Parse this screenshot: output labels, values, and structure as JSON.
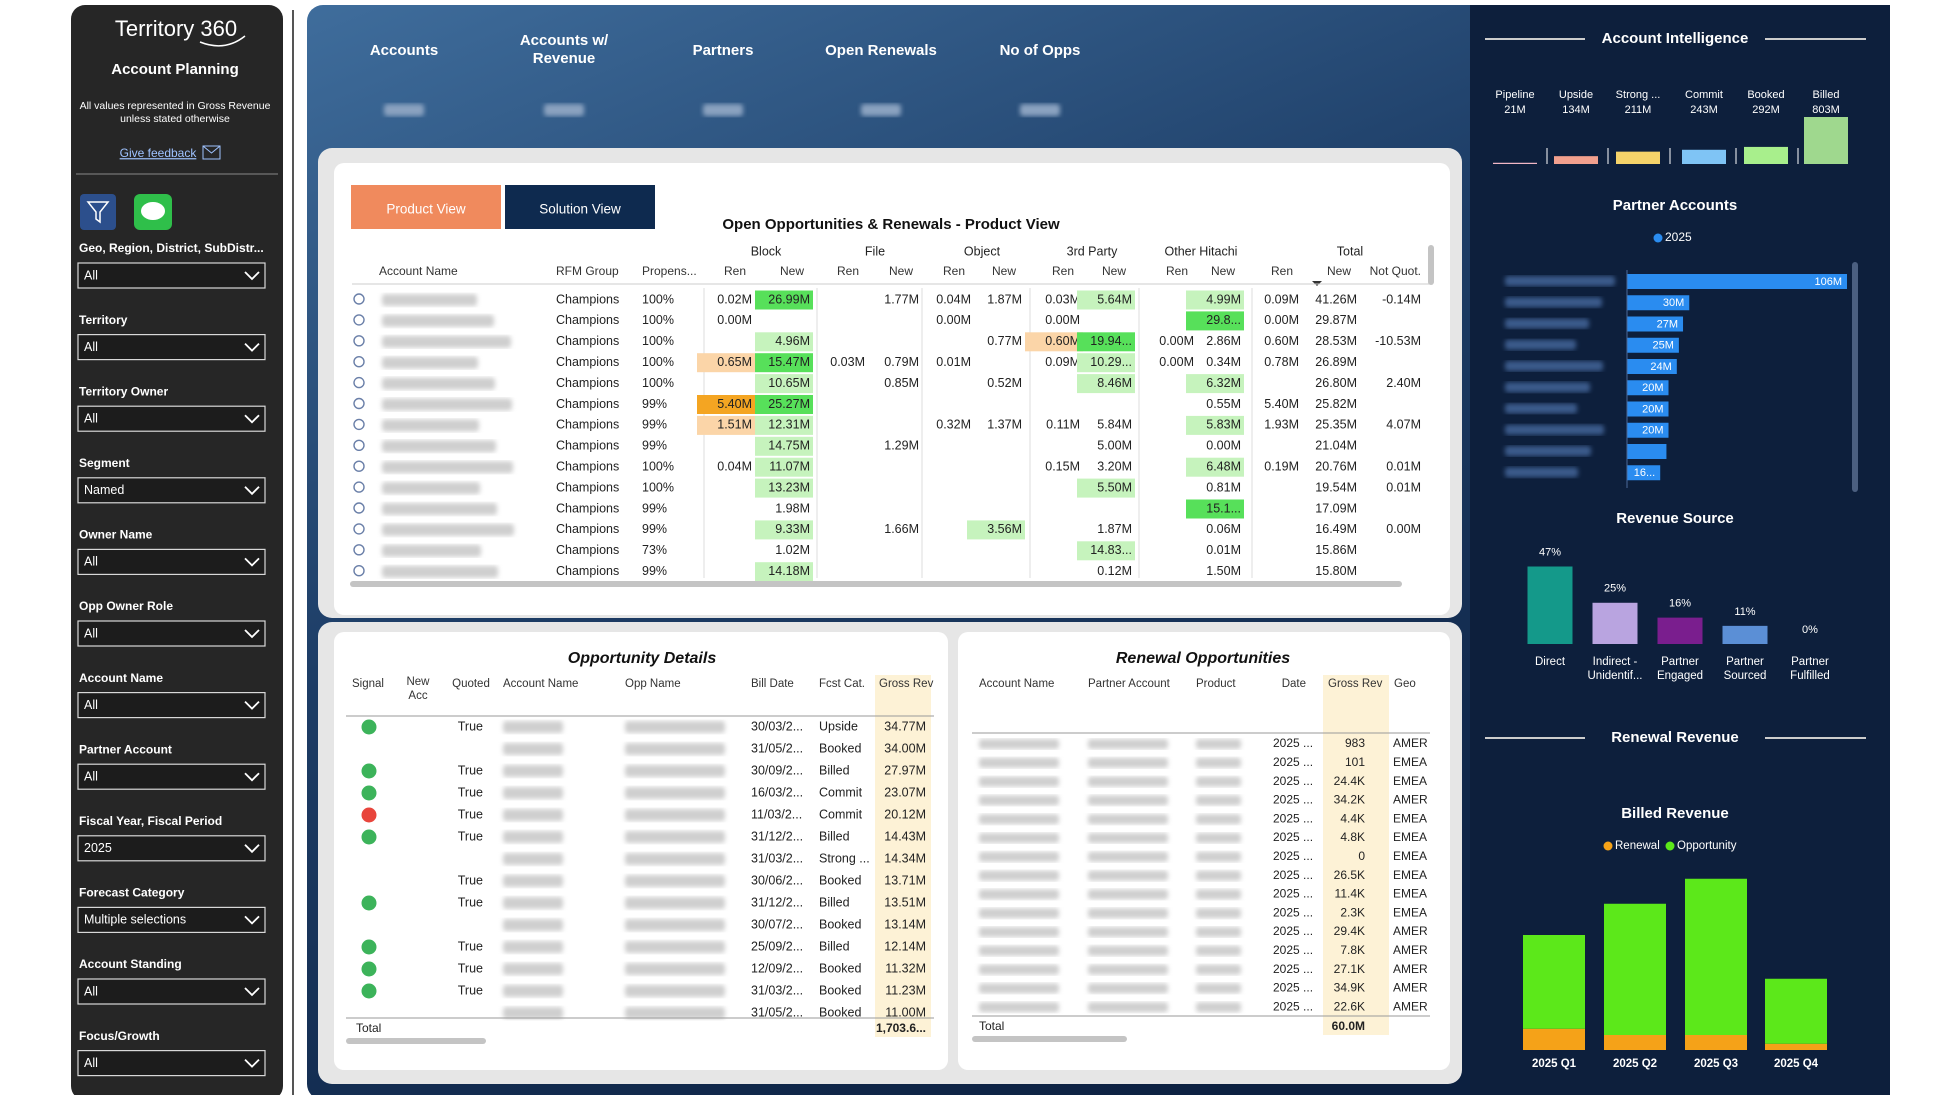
{
  "sidebar": {
    "title": "Territory 360",
    "subtitle": "Account Planning",
    "note": "All values represented in Gross Revenue unless stated otherwise",
    "feedback": "Give feedback",
    "filters": [
      {
        "label": "Geo, Region, District, SubDistr...",
        "value": "All"
      },
      {
        "label": "Territory",
        "value": "All"
      },
      {
        "label": "Territory Owner",
        "value": "All"
      },
      {
        "label": "Segment",
        "value": "Named"
      },
      {
        "label": "Owner Name",
        "value": "All"
      },
      {
        "label": "Opp Owner Role",
        "value": "All"
      },
      {
        "label": "Account Name",
        "value": "All"
      },
      {
        "label": "Partner Account",
        "value": "All"
      },
      {
        "label": "Fiscal Year, Fiscal Period",
        "value": "2025"
      },
      {
        "label": "Forecast Category",
        "value": "Multiple selections"
      },
      {
        "label": "Account Standing",
        "value": "All"
      },
      {
        "label": "Focus/Growth",
        "value": "All"
      }
    ]
  },
  "kpis": [
    "Accounts",
    "Accounts w/ Revenue",
    "Partners",
    "Open Renewals",
    "No of Opps"
  ],
  "product_table": {
    "tabs": [
      "Product View",
      "Solution View"
    ],
    "title": "Open Opportunities & Renewals - Product View",
    "groups": [
      "Block",
      "File",
      "Object",
      "3rd Party",
      "Other Hitachi",
      "Total"
    ],
    "headers": [
      "Account Name",
      "RFM Group",
      "Propens...",
      "Ren",
      "New",
      "Ren",
      "New",
      "Ren",
      "New",
      "Ren",
      "New",
      "Ren",
      "New",
      "Ren",
      "New",
      "Not Quot."
    ],
    "rows": [
      [
        "Champions",
        "100%",
        "0.02M",
        {
          "text": "26.99M",
          "color": "#57e05a"
        },
        null,
        "1.77M",
        "0.04M",
        "1.87M",
        "0.03M",
        {
          "text": "5.64M",
          "color": "#c6f3bd"
        },
        null,
        {
          "text": "4.99M",
          "color": "#c6f3bd"
        },
        "0.09M",
        "41.26M",
        "-0.14M"
      ],
      [
        "Champions",
        "100%",
        "0.00M",
        null,
        null,
        null,
        "0.00M",
        null,
        "0.00M",
        null,
        null,
        {
          "text": "29.8...",
          "color": "#57e05a"
        },
        "0.00M",
        "29.87M",
        null
      ],
      [
        "Champions",
        "100%",
        null,
        {
          "text": "4.96M",
          "color": "#c6f3bd"
        },
        null,
        null,
        null,
        "0.77M",
        {
          "text": "0.60M",
          "color": "#fbd5a8"
        },
        {
          "text": "19.94...",
          "color": "#57e05a"
        },
        "0.00M",
        "2.86M",
        "0.60M",
        "28.53M",
        "-10.53M"
      ],
      [
        "Champions",
        "100%",
        {
          "text": "0.65M",
          "color": "#fbd5a8"
        },
        {
          "text": "15.47M",
          "color": "#57e05a"
        },
        "0.03M",
        "0.79M",
        "0.01M",
        null,
        "0.09M",
        {
          "text": "10.29...",
          "color": "#c6f3bd"
        },
        "0.00M",
        "0.34M",
        "0.78M",
        "26.89M",
        null
      ],
      [
        "Champions",
        "100%",
        null,
        {
          "text": "10.65M",
          "color": "#c6f3bd"
        },
        null,
        "0.85M",
        null,
        "0.52M",
        null,
        {
          "text": "8.46M",
          "color": "#c6f3bd"
        },
        null,
        {
          "text": "6.32M",
          "color": "#c6f3bd"
        },
        null,
        "26.80M",
        "2.40M"
      ],
      [
        "Champions",
        "99%",
        {
          "text": "5.40M",
          "color": "#f4a522"
        },
        {
          "text": "25.27M",
          "color": "#57e05a"
        },
        null,
        null,
        null,
        null,
        null,
        null,
        null,
        "0.55M",
        "5.40M",
        "25.82M",
        null
      ],
      [
        "Champions",
        "99%",
        {
          "text": "1.51M",
          "color": "#fbd5a8"
        },
        {
          "text": "12.31M",
          "color": "#c6f3bd"
        },
        null,
        null,
        "0.32M",
        "1.37M",
        "0.11M",
        "5.84M",
        null,
        {
          "text": "5.83M",
          "color": "#c6f3bd"
        },
        "1.93M",
        "25.35M",
        "4.07M"
      ],
      [
        "Champions",
        "99%",
        null,
        {
          "text": "14.75M",
          "color": "#c6f3bd"
        },
        null,
        "1.29M",
        null,
        null,
        null,
        "5.00M",
        null,
        "0.00M",
        null,
        "21.04M",
        null
      ],
      [
        "Champions",
        "100%",
        "0.04M",
        {
          "text": "11.07M",
          "color": "#c6f3bd"
        },
        null,
        null,
        null,
        null,
        "0.15M",
        "3.20M",
        null,
        {
          "text": "6.48M",
          "color": "#c6f3bd"
        },
        "0.19M",
        "20.76M",
        "0.01M"
      ],
      [
        "Champions",
        "100%",
        null,
        {
          "text": "13.23M",
          "color": "#c6f3bd"
        },
        null,
        null,
        null,
        null,
        null,
        {
          "text": "5.50M",
          "color": "#c6f3bd"
        },
        null,
        "0.81M",
        null,
        "19.54M",
        "0.01M"
      ],
      [
        "Champions",
        "99%",
        null,
        "1.98M",
        null,
        null,
        null,
        null,
        null,
        null,
        null,
        {
          "text": "15.1...",
          "color": "#57e05a"
        },
        null,
        "17.09M",
        null
      ],
      [
        "Champions",
        "99%",
        null,
        {
          "text": "9.33M",
          "color": "#c6f3bd"
        },
        null,
        "1.66M",
        null,
        {
          "text": "3.56M",
          "color": "#c6f3bd"
        },
        null,
        "1.87M",
        null,
        "0.06M",
        null,
        "16.49M",
        "0.00M"
      ],
      [
        "Champions",
        "73%",
        null,
        "1.02M",
        null,
        null,
        null,
        null,
        null,
        {
          "text": "14.83...",
          "color": "#c6f3bd"
        },
        null,
        "0.01M",
        null,
        "15.86M",
        null
      ],
      [
        "Champions",
        "99%",
        null,
        {
          "text": "14.18M",
          "color": "#c6f3bd"
        },
        null,
        null,
        null,
        null,
        null,
        "0.12M",
        null,
        "1.50M",
        null,
        "15.80M",
        null
      ]
    ]
  },
  "opportunity_details": {
    "title": "Opportunity Details",
    "headers": [
      "Signal",
      "New Acc",
      "Quoted",
      "Account Name",
      "Opp Name",
      "Bill Date",
      "Fcst Cat.",
      "Gross Rev"
    ],
    "rows": [
      {
        "signal": "#3cb35a",
        "quoted": "True",
        "bill_date": "30/03/2...",
        "fcst_cat": "Upside",
        "gross_rev": "34.77M"
      },
      {
        "signal": null,
        "quoted": null,
        "bill_date": "31/05/2...",
        "fcst_cat": "Booked",
        "gross_rev": "34.00M"
      },
      {
        "signal": "#3cb35a",
        "quoted": "True",
        "bill_date": "30/09/2...",
        "fcst_cat": "Billed",
        "gross_rev": "27.97M"
      },
      {
        "signal": "#3cb35a",
        "quoted": "True",
        "bill_date": "16/03/2...",
        "fcst_cat": "Commit",
        "gross_rev": "23.07M"
      },
      {
        "signal": "#e8453c",
        "quoted": "True",
        "bill_date": "11/03/2...",
        "fcst_cat": "Commit",
        "gross_rev": "20.12M"
      },
      {
        "signal": "#3cb35a",
        "quoted": "True",
        "bill_date": "31/12/2...",
        "fcst_cat": "Billed",
        "gross_rev": "14.43M"
      },
      {
        "signal": null,
        "quoted": null,
        "bill_date": "31/03/2...",
        "fcst_cat": "Strong ...",
        "gross_rev": "14.34M"
      },
      {
        "signal": null,
        "quoted": "True",
        "bill_date": "30/06/2...",
        "fcst_cat": "Booked",
        "gross_rev": "13.71M"
      },
      {
        "signal": "#3cb35a",
        "quoted": "True",
        "bill_date": "31/12/2...",
        "fcst_cat": "Billed",
        "gross_rev": "13.51M"
      },
      {
        "signal": null,
        "quoted": null,
        "bill_date": "30/07/2...",
        "fcst_cat": "Booked",
        "gross_rev": "13.14M"
      },
      {
        "signal": "#3cb35a",
        "quoted": "True",
        "bill_date": "25/09/2...",
        "fcst_cat": "Billed",
        "gross_rev": "12.14M"
      },
      {
        "signal": "#3cb35a",
        "quoted": "True",
        "bill_date": "12/09/2...",
        "fcst_cat": "Booked",
        "gross_rev": "11.32M"
      },
      {
        "signal": "#3cb35a",
        "quoted": "True",
        "bill_date": "31/03/2...",
        "fcst_cat": "Booked",
        "gross_rev": "11.23M"
      },
      {
        "signal": null,
        "quoted": null,
        "bill_date": "31/05/2...",
        "fcst_cat": "Booked",
        "gross_rev": "11.00M"
      }
    ],
    "total_label": "Total",
    "total": "1,703.6..."
  },
  "renewal_opportunities": {
    "title": "Renewal Opportunities",
    "headers": [
      "Account Name",
      "Partner Account",
      "Product",
      "Date",
      "Gross Rev",
      "Geo"
    ],
    "rows": [
      {
        "date": "2025 ...",
        "gross_rev": "983",
        "geo": "AMER"
      },
      {
        "date": "2025 ...",
        "gross_rev": "101",
        "geo": "EMEA"
      },
      {
        "date": "2025 ...",
        "gross_rev": "24.4K",
        "geo": "EMEA"
      },
      {
        "date": "2025 ...",
        "gross_rev": "34.2K",
        "geo": "AMER"
      },
      {
        "date": "2025 ...",
        "gross_rev": "4.4K",
        "geo": "EMEA"
      },
      {
        "date": "2025 ...",
        "gross_rev": "4.8K",
        "geo": "EMEA"
      },
      {
        "date": "2025 ...",
        "gross_rev": "0",
        "geo": "EMEA"
      },
      {
        "date": "2025 ...",
        "gross_rev": "26.5K",
        "geo": "EMEA"
      },
      {
        "date": "2025 ...",
        "gross_rev": "11.4K",
        "geo": "EMEA"
      },
      {
        "date": "2025 ...",
        "gross_rev": "2.3K",
        "geo": "EMEA"
      },
      {
        "date": "2025 ...",
        "gross_rev": "29.4K",
        "geo": "AMER"
      },
      {
        "date": "2025 ...",
        "gross_rev": "7.8K",
        "geo": "AMER"
      },
      {
        "date": "2025 ...",
        "gross_rev": "27.1K",
        "geo": "AMER"
      },
      {
        "date": "2025 ...",
        "gross_rev": "34.9K",
        "geo": "AMER"
      },
      {
        "date": "2025 ...",
        "gross_rev": "22.6K",
        "geo": "AMER"
      }
    ],
    "total_label": "Total",
    "total": "60.0M"
  },
  "renewal_heading": "Renewal Revenue",
  "chart_data": [
    {
      "type": "bar",
      "title": "Account Intelligence",
      "categories": [
        "Pipeline",
        "Upside",
        "Strong ...",
        "Commit",
        "Booked",
        "Billed"
      ],
      "values": [
        21,
        134,
        211,
        243,
        292,
        803
      ],
      "value_labels": [
        "21M",
        "134M",
        "211M",
        "243M",
        "292M",
        "803M"
      ],
      "colors": [
        "#f2b8c6",
        "#f2a08e",
        "#f5d36a",
        "#7fc4f5",
        "#a8ef8c",
        "#9fd88e"
      ]
    },
    {
      "type": "hbar",
      "title": "Partner Accounts",
      "categories": [
        null,
        null,
        null,
        null,
        null,
        null,
        null,
        null,
        null,
        null
      ],
      "series": [
        {
          "name": "2025",
          "color": "#2a8cf0",
          "values": [
            106,
            30,
            27,
            25,
            24,
            20,
            20,
            20,
            19,
            16
          ],
          "value_labels": [
            "106M",
            "30M",
            "27M",
            "25M",
            "24M",
            "20M",
            "20M",
            "20M",
            null,
            "16..."
          ]
        }
      ]
    },
    {
      "type": "bar",
      "title": "Revenue Source",
      "categories": [
        "Direct",
        "Indirect - Unidentif...",
        "Partner Engaged",
        "Partner Sourced",
        "Partner Fulfilled"
      ],
      "values": [
        47,
        25,
        16,
        11,
        0
      ],
      "value_labels": [
        "47%",
        "25%",
        "16%",
        "11%",
        "0%"
      ],
      "colors": [
        "#14998a",
        "#b9a4e0",
        "#7a1e8e",
        "#5b8fd6",
        "#4b6fa8"
      ]
    },
    {
      "type": "stacked_bar",
      "title": "Billed Revenue",
      "categories": [
        "2025 Q1",
        "2025 Q2",
        "2025 Q3",
        "2025 Q4"
      ],
      "series": [
        {
          "name": "Renewal",
          "color": "#f5a218",
          "values": [
            17,
            12,
            12,
            5
          ]
        },
        {
          "name": "Opportunity",
          "color": "#5ce81a",
          "values": [
            75,
            105,
            125,
            52
          ]
        }
      ]
    }
  ]
}
